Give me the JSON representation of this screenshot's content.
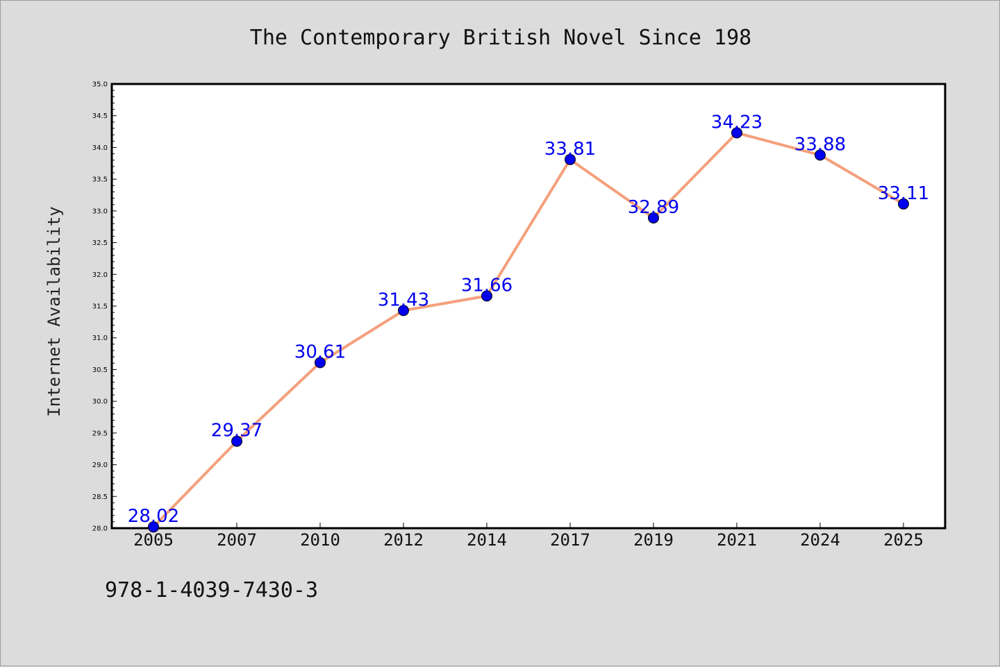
{
  "chart_data": {
    "type": "line",
    "title": "The Contemporary British Novel Since 198",
    "xlabel": "",
    "ylabel": "Internet Availability",
    "categories": [
      "2005",
      "2007",
      "2010",
      "2012",
      "2014",
      "2017",
      "2019",
      "2021",
      "2024",
      "2025"
    ],
    "series": [
      {
        "values": [
          28.02,
          29.37,
          30.61,
          31.43,
          31.66,
          33.81,
          32.89,
          34.23,
          33.88,
          33.11
        ],
        "labels": [
          "28.02",
          "29.37",
          "30.61",
          "31.43",
          "31.66",
          "33.81",
          "32.89",
          "34.23",
          "33.88",
          "33.11"
        ]
      }
    ],
    "ylim": [
      28.0,
      35.0
    ],
    "yticks": [
      "28.0",
      "28.5",
      "29.0",
      "29.5",
      "30.0",
      "30.5",
      "31.0",
      "31.5",
      "32.0",
      "32.5",
      "33.0",
      "33.5",
      "34.0",
      "34.5",
      "35.0"
    ],
    "grid": false,
    "colors": {
      "line": "#f4a07c",
      "marker": "#0000ee",
      "label": "#0000ee",
      "background": "#dcdcdc",
      "plot_area": "#ffffff"
    }
  },
  "footer": {
    "isbn": "978-1-4039-7430-3"
  }
}
